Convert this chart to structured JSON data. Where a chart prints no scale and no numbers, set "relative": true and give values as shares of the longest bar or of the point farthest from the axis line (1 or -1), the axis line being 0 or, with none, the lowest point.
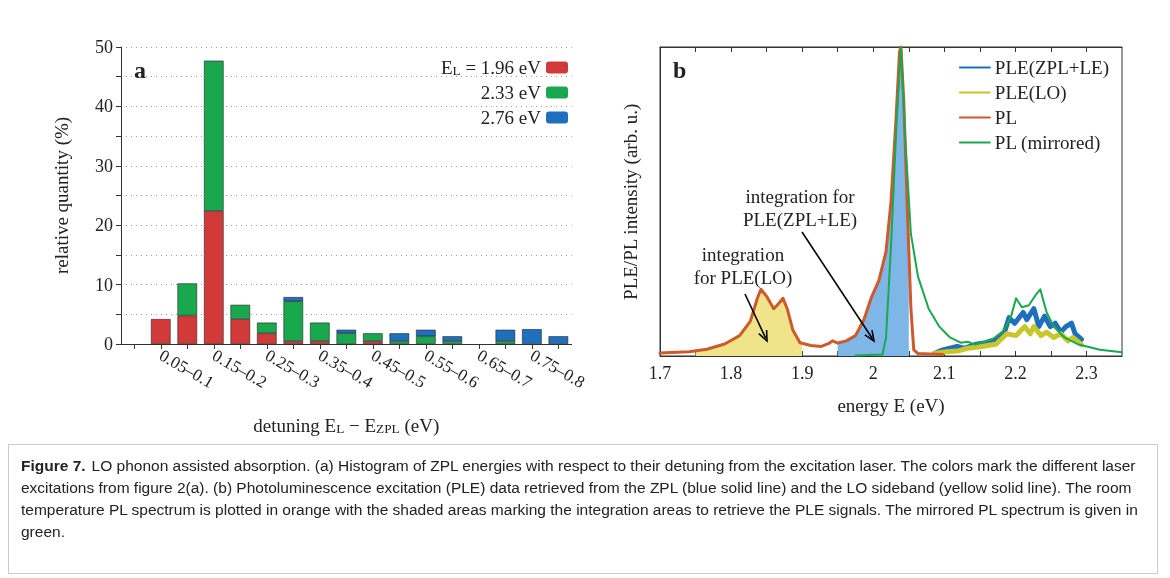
{
  "chart_data": [
    {
      "type": "bar",
      "title": "a",
      "ylabel": "relative quantity (%)",
      "xlabel": "detuning E$_{L}$ − E$_{ZPL}$ (eV)",
      "stacked": true,
      "legend": "top right",
      "grid": "y",
      "categories": [
        null,
        "0.05–0.1",
        null,
        "0.15–0.2",
        null,
        "0.25–0.3",
        null,
        "0.35–0.4",
        null,
        "0.45–0.5",
        null,
        "0.55–0.6",
        null,
        "0.65–0.7",
        null,
        "0.75–0.8",
        null
      ],
      "ylim": [
        0,
        50
      ],
      "yticks": [
        0,
        {
          "value": 5,
          "label": null
        },
        10,
        {
          "value": 15,
          "label": null
        },
        20,
        {
          "value": 25,
          "label": null
        },
        30,
        {
          "value": 35,
          "label": null
        },
        40,
        {
          "value": 45,
          "label": null
        },
        50
      ],
      "series": [
        {
          "name": "E$_{L}$ = 1.96 eV",
          "color": "#d23a3a",
          "values": [
            0,
            4.2,
            4.8,
            22.4,
            4.2,
            1.8,
            0.5,
            0.5,
            0,
            0.5,
            0,
            0,
            0,
            0,
            0,
            0,
            0
          ]
        },
        {
          "name": "2.33 eV",
          "color": "#1aa84f",
          "values": [
            0,
            0,
            5.4,
            25.3,
            2.4,
            1.8,
            6.7,
            3.1,
            1.8,
            1.3,
            0.5,
            1.3,
            0.5,
            0,
            0.5,
            0,
            0
          ]
        },
        {
          "name": "2.76 eV",
          "color": "#1f6fbf",
          "values": [
            0,
            0,
            0,
            0,
            0,
            0,
            0.7,
            0,
            0.6,
            0,
            1.3,
            1.1,
            0.8,
            0,
            1.9,
            2.5,
            1.3
          ]
        }
      ],
      "annotations": [
        "Figure 7.",
        "LO phonon assisted absorption. (a) Histogram of ZPL energies with respect to their detuning from the excitation laser. The colors mark the different laser excitations from figure 2(a). (b) Photoluminescence excitation (PLE) data retrieved from the ZPL (blue solid line) and the LO sideband (yellow solid line). The room temperature PL spectrum is plotted in orange with the shaded areas marking the integration areas to retrieve the PLE signals. The mirrored PL spectrum is given in green."
      ]
    },
    {
      "type": "line",
      "title": "b",
      "ylabel": "PLE/PL intensity (arb. u.)",
      "xlabel": "energy E (eV)",
      "relative": true,
      "legend": "top right",
      "xlim": [
        1.7,
        2.35
      ],
      "xticks": [
        1.7,
        {
          "value": 1.75,
          "label": null
        },
        1.8,
        {
          "value": 1.85,
          "label": null
        },
        1.9,
        {
          "value": 1.95,
          "label": null
        },
        2,
        {
          "value": 2.05,
          "label": null
        },
        2.1,
        {
          "value": 2.15,
          "label": null
        },
        2.2,
        {
          "value": 2.25,
          "label": null
        },
        2.3
      ],
      "series": [
        {
          "type": "area",
          "color": "#efe48a",
          "x": [
            1.75,
            1.766,
            1.791,
            1.812,
            1.827,
            1.837,
            1.842,
            1.85,
            1.86,
            1.867,
            1.873,
            1.879,
            1.887,
            1.897,
            1.9
          ],
          "values": [
            0.016,
            0.022,
            0.039,
            0.066,
            0.112,
            0.187,
            0.216,
            0.193,
            0.153,
            0.17,
            0.187,
            0.153,
            0.083,
            0.043,
            0.04
          ]
        },
        {
          "type": "area",
          "color": "#7fb6e8",
          "x": [
            1.95,
            1.962,
            1.975,
            1.987,
            1.997,
            2.008,
            2.018,
            2.025,
            2.032,
            2.037,
            2.039,
            2.043,
            2.048,
            2.05
          ],
          "values": [
            0.042,
            0.049,
            0.066,
            0.118,
            0.187,
            0.245,
            0.338,
            0.499,
            0.765,
            0.985,
            1,
            0.823,
            0.476,
            0.31
          ]
        },
        {
          "name": "PLE(ZPL+LE)",
          "color": "#1f6fbf",
          "x": [
            2.086,
            2.098,
            2.118,
            2.128,
            2.143,
            2.158,
            2.173,
            2.184,
            2.191,
            2.199,
            2.211,
            2.216,
            2.226,
            2.233,
            2.241,
            2.249,
            2.256,
            2.264,
            2.271,
            2.279,
            2.284,
            2.293
          ],
          "values": [
            0.008,
            0.02,
            0.031,
            0.025,
            0.037,
            0.043,
            0.054,
            0.072,
            0.124,
            0.106,
            0.141,
            0.118,
            0.153,
            0.095,
            0.129,
            0.095,
            0.106,
            0.077,
            0.095,
            0.106,
            0.072,
            0.054
          ]
        },
        {
          "name": "PLE(LO)",
          "color": "#c8c62a",
          "x": [
            2.086,
            2.103,
            2.118,
            2.133,
            2.153,
            2.173,
            2.188,
            2.201,
            2.213,
            2.221,
            2.226,
            2.236,
            2.244,
            2.254,
            2.264,
            2.274,
            2.281,
            2.293
          ],
          "values": [
            0.008,
            0.014,
            0.016,
            0.025,
            0.031,
            0.039,
            0.072,
            0.066,
            0.095,
            0.072,
            0.095,
            0.066,
            0.077,
            0.06,
            0.072,
            0.049,
            0.06,
            0.037
          ]
        },
        {
          "name": "PL",
          "color": "#cc5a2a",
          "x": [
            1.7,
            1.741,
            1.766,
            1.791,
            1.812,
            1.827,
            1.837,
            1.842,
            1.85,
            1.86,
            1.867,
            1.873,
            1.879,
            1.887,
            1.897,
            1.912,
            1.927,
            1.937,
            1.943,
            1.95,
            1.962,
            1.975,
            1.987,
            1.997,
            2.008,
            2.018,
            2.025,
            2.032,
            2.037,
            2.039,
            2.043,
            2.048,
            2.053,
            2.057,
            2.063,
            2.098
          ],
          "values": [
            0.01,
            0.014,
            0.022,
            0.039,
            0.066,
            0.112,
            0.187,
            0.216,
            0.193,
            0.153,
            0.17,
            0.187,
            0.153,
            0.083,
            0.043,
            0.034,
            0.031,
            0.04,
            0.049,
            0.042,
            0.049,
            0.066,
            0.118,
            0.187,
            0.245,
            0.338,
            0.499,
            0.765,
            0.985,
            1,
            0.823,
            0.476,
            0.153,
            0.02,
            0.008,
            0.005
          ]
        },
        {
          "name": "PL (mirrored)",
          "color": "#1aa84f",
          "x": [
            1.975,
            2.013,
            2.018,
            2.025,
            2.033,
            2.039,
            2.045,
            2.053,
            2.063,
            2.078,
            2.093,
            2.108,
            2.123,
            2.133,
            2.143,
            2.168,
            2.184,
            2.194,
            2.201,
            2.209,
            2.219,
            2.229,
            2.235,
            2.244,
            2.254,
            2.269,
            2.289,
            2.319,
            2.35
          ],
          "values": [
            0.002,
            0.005,
            0.06,
            0.355,
            0.765,
            1,
            0.705,
            0.395,
            0.257,
            0.153,
            0.095,
            0.06,
            0.043,
            0.046,
            0.037,
            0.054,
            0.083,
            0.129,
            0.187,
            0.158,
            0.164,
            0.199,
            0.216,
            0.141,
            0.095,
            0.06,
            0.037,
            0.02,
            0.012
          ]
        }
      ],
      "annotations": [
        "integration for\nPLE(ZPL+LE)",
        "integration\nfor PLE(LO)"
      ]
    }
  ]
}
